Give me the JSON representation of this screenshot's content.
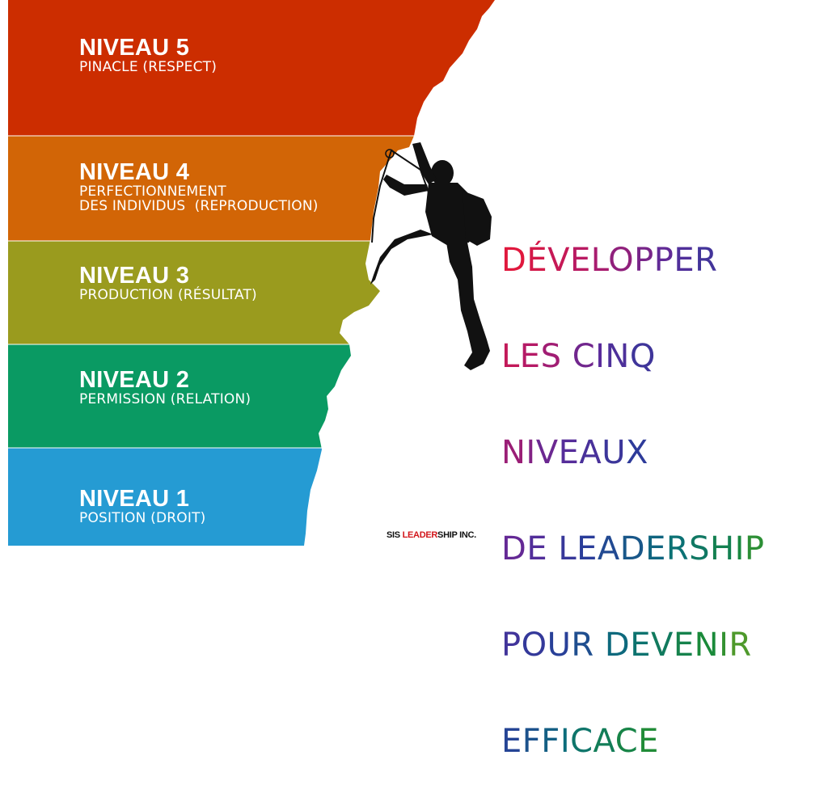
{
  "levels": [
    {
      "title": "NIVEAU 5",
      "desc": [
        "PINACLE (RESPECT)"
      ],
      "color": "#cc2d00"
    },
    {
      "title": "NIVEAU 4",
      "desc": [
        "PERFECTIONNEMENT",
        "DES INDIVIDUS  (REPRODUCTION)"
      ],
      "color": "#d26506"
    },
    {
      "title": "NIVEAU 3",
      "desc": [
        "PRODUCTION (RÉSULTAT)"
      ],
      "color": "#9a9b1e"
    },
    {
      "title": "NIVEAU 2",
      "desc": [
        "PERMISSION (RELATION)"
      ],
      "color": "#0a9a63"
    },
    {
      "title": "NIVEAU 1",
      "desc": [
        "POSITION (DROIT)"
      ],
      "color": "#259bd3"
    }
  ],
  "headline": {
    "lines": [
      "DÉVELOPPER",
      "LES CINQ",
      "NIVEAUX",
      "DE LEADERSHIP",
      "POUR DEVENIR",
      "EFFICACE"
    ],
    "gradient": [
      "#e0183d",
      "#b11a6a",
      "#5a2b9a",
      "#2a3d9a",
      "#0a6e7a",
      "#1a8a3a",
      "#7aa61e",
      "#a5a312"
    ]
  },
  "footer": {
    "prefix": "SIS ",
    "accent": "LEADER",
    "suffix": "SHIP INC."
  }
}
